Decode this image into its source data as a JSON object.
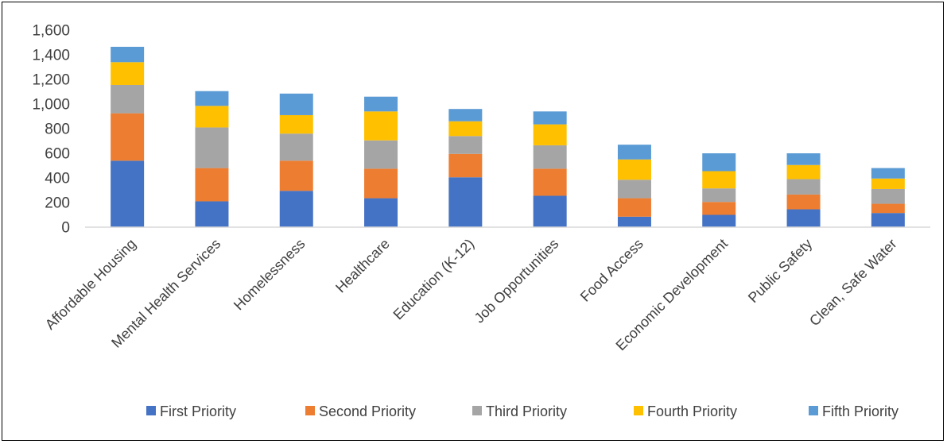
{
  "chart_data": {
    "type": "bar",
    "stacked": true,
    "categories": [
      "Affordable Housing",
      "Mental Health Services",
      "Homelessness",
      "Healthcare",
      "Education (K-12)",
      "Job Opportunities",
      "Food Access",
      "Economic Development",
      "Public Safety",
      "Clean, Safe Water"
    ],
    "series": [
      {
        "name": "First Priority",
        "color": "#4472C4",
        "values": [
          540,
          210,
          295,
          235,
          405,
          255,
          85,
          100,
          145,
          115
        ]
      },
      {
        "name": "Second Priority",
        "color": "#ED7D31",
        "values": [
          385,
          270,
          245,
          240,
          190,
          220,
          150,
          105,
          120,
          75
        ]
      },
      {
        "name": "Third Priority",
        "color": "#A5A5A5",
        "values": [
          230,
          330,
          220,
          230,
          145,
          190,
          150,
          110,
          125,
          120
        ]
      },
      {
        "name": "Fourth Priority",
        "color": "#FFC000",
        "values": [
          185,
          175,
          150,
          235,
          120,
          170,
          165,
          140,
          115,
          85
        ]
      },
      {
        "name": "Fifth Priority",
        "color": "#5B9BD5",
        "values": [
          125,
          120,
          175,
          120,
          100,
          105,
          120,
          145,
          95,
          85
        ]
      }
    ],
    "yticks": [
      "0",
      "200",
      "400",
      "600",
      "800",
      "1,000",
      "1,200",
      "1,400",
      "1,600"
    ],
    "ylim": [
      0,
      1600
    ],
    "grid": false,
    "legend_position": "bottom",
    "title": "",
    "xlabel": "",
    "ylabel": ""
  }
}
